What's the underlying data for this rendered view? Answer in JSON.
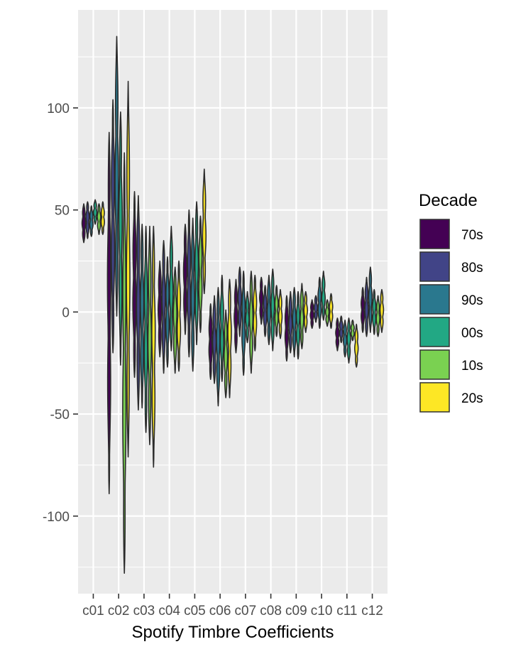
{
  "chart_data": {
    "type": "violin",
    "xlabel": "Spotify Timbre Coefficients",
    "ylabel": "",
    "ylim": [
      -138,
      148
    ],
    "y_ticks": [
      -100,
      -50,
      0,
      50,
      100
    ],
    "y_tick_labels": [
      "-100",
      "-50",
      "0",
      "50",
      "100"
    ],
    "categories": [
      "c01",
      "c02",
      "c03",
      "c04",
      "c05",
      "c06",
      "c07",
      "c08",
      "c09",
      "c10",
      "c11",
      "c12"
    ],
    "grid": true,
    "legend": {
      "title": "Decade",
      "position": "right",
      "items": [
        {
          "label": "70s",
          "color": "#440154"
        },
        {
          "label": "80s",
          "color": "#414487"
        },
        {
          "label": "90s",
          "color": "#2A788E"
        },
        {
          "label": "00s",
          "color": "#22A884"
        },
        {
          "label": "10s",
          "color": "#7AD151"
        },
        {
          "label": "20s",
          "color": "#FDE725"
        }
      ]
    },
    "series": [
      {
        "name": "70s",
        "violins": [
          [
            34,
            53
          ],
          [
            -89,
            88
          ],
          [
            -32,
            59
          ],
          [
            -22,
            25
          ],
          [
            -11,
            43
          ],
          [
            -33,
            4
          ],
          [
            -20,
            16
          ],
          [
            -6,
            17
          ],
          [
            -24,
            8
          ],
          [
            -8,
            6
          ],
          [
            -19,
            -3
          ],
          [
            -10,
            12
          ]
        ]
      },
      {
        "name": "80s",
        "violins": [
          [
            36,
            54
          ],
          [
            -20,
            104
          ],
          [
            -48,
            57
          ],
          [
            -30,
            35
          ],
          [
            -22,
            50
          ],
          [
            -35,
            8
          ],
          [
            -12,
            22
          ],
          [
            -12,
            13
          ],
          [
            -20,
            10
          ],
          [
            -5,
            8
          ],
          [
            -15,
            -2
          ],
          [
            -12,
            17
          ]
        ]
      },
      {
        "name": "90s",
        "violins": [
          [
            37,
            52
          ],
          [
            -2,
            135
          ],
          [
            -47,
            43
          ],
          [
            -27,
            27
          ],
          [
            -29,
            46
          ],
          [
            -46,
            12
          ],
          [
            -31,
            20
          ],
          [
            -16,
            18
          ],
          [
            -22,
            12
          ],
          [
            -8,
            17
          ],
          [
            -22,
            -4
          ],
          [
            -10,
            22
          ]
        ]
      },
      {
        "name": "00s",
        "violins": [
          [
            43,
            55
          ],
          [
            -26,
            98
          ],
          [
            -59,
            42
          ],
          [
            -19,
            42
          ],
          [
            -16,
            54
          ],
          [
            -34,
            18
          ],
          [
            -15,
            10
          ],
          [
            -19,
            21
          ],
          [
            -23,
            10
          ],
          [
            -4,
            20
          ],
          [
            -25,
            -3
          ],
          [
            -11,
            11
          ]
        ]
      },
      {
        "name": "10s",
        "violins": [
          [
            38,
            53
          ],
          [
            -128,
            78
          ],
          [
            -65,
            42
          ],
          [
            -30,
            22
          ],
          [
            -10,
            47
          ],
          [
            -42,
            1
          ],
          [
            -30,
            20
          ],
          [
            -12,
            13
          ],
          [
            -18,
            14
          ],
          [
            -7,
            6
          ],
          [
            -14,
            -4
          ],
          [
            -12,
            8
          ]
        ]
      },
      {
        "name": "20s",
        "violins": [
          [
            38,
            54
          ],
          [
            -71,
            113
          ],
          [
            -76,
            42
          ],
          [
            -29,
            25
          ],
          [
            9,
            70
          ],
          [
            -42,
            16
          ],
          [
            -19,
            18
          ],
          [
            -13,
            11
          ],
          [
            -10,
            10
          ],
          [
            -8,
            9
          ],
          [
            -27,
            -6
          ],
          [
            -10,
            11
          ]
        ]
      }
    ]
  }
}
